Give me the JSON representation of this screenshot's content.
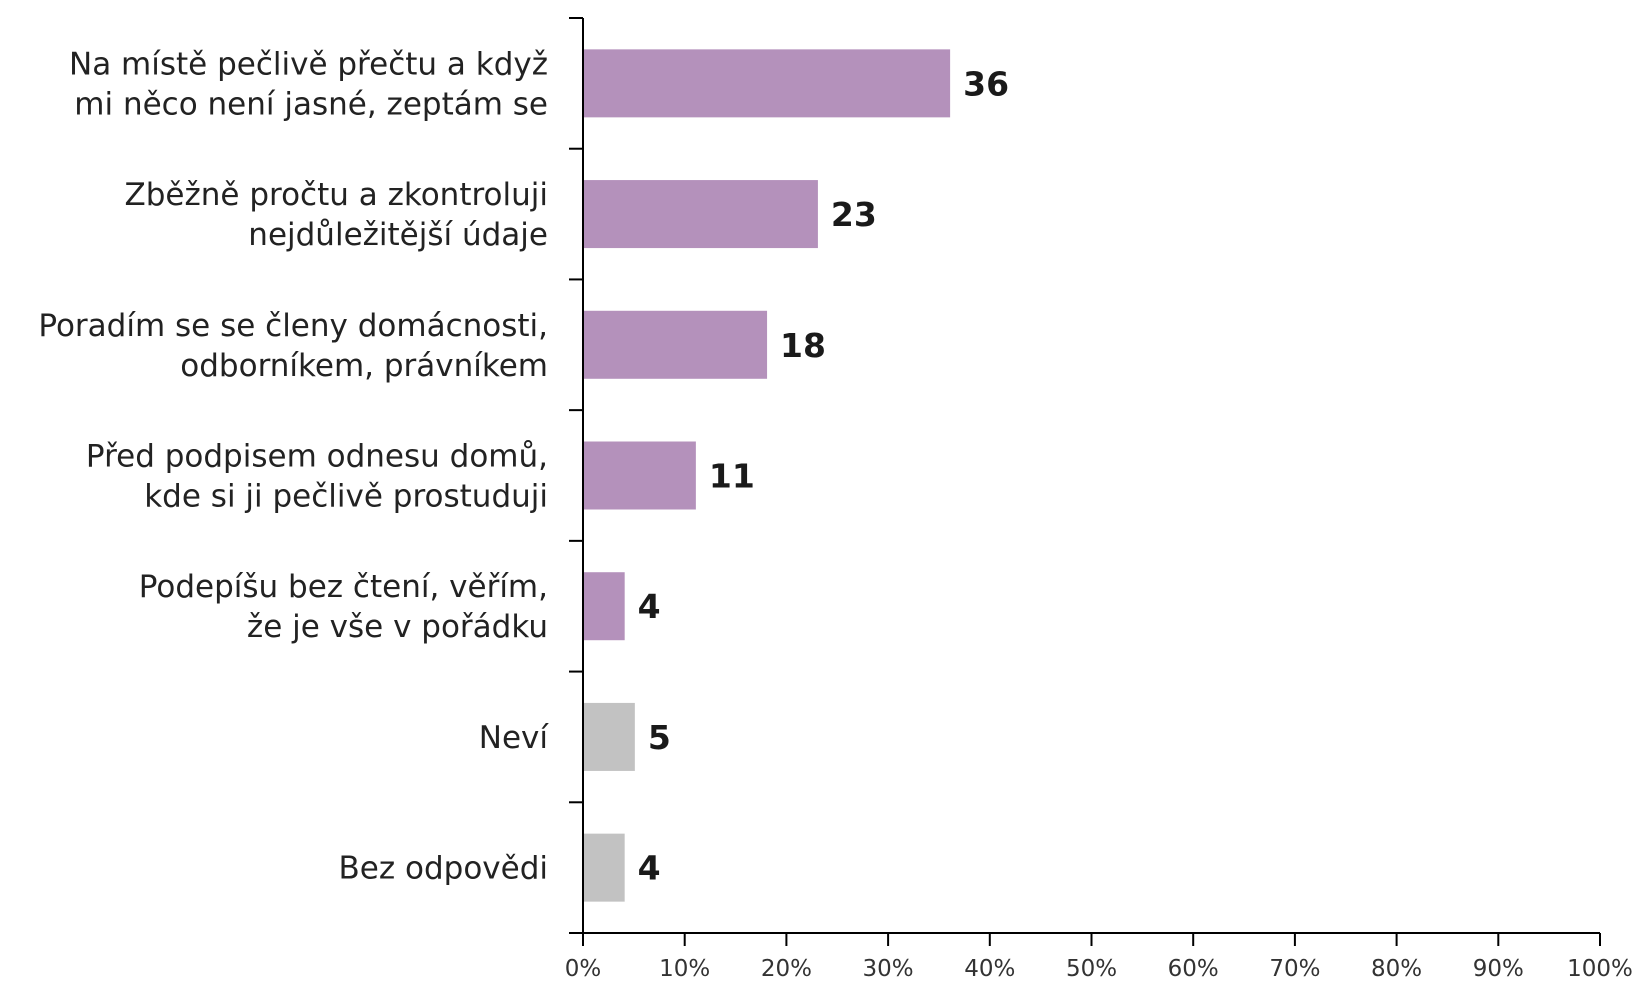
{
  "chart_data": {
    "type": "bar",
    "orientation": "horizontal",
    "title": "",
    "xlabel": "",
    "ylabel": "",
    "xlim": [
      0,
      100
    ],
    "x_ticks": [
      "0%",
      "10%",
      "20%",
      "30%",
      "40%",
      "50%",
      "60%",
      "70%",
      "80%",
      "90%",
      "100%"
    ],
    "grid": false,
    "legend": "none",
    "categories": [
      [
        "Na místě pečlivě přečtu a když",
        "mi něco není jasné, zeptám se"
      ],
      [
        "Zběžně pročtu a zkontroluji",
        "nejdůležitější údaje"
      ],
      [
        "Poradím se se členy domácnosti,",
        "odborníkem, právníkem"
      ],
      [
        "Před podpisem odnesu domů,",
        "kde si ji pečlivě prostuduji"
      ],
      [
        "Podepíšu bez čtení, věřím,",
        "že je vše v pořádku"
      ],
      [
        "Neví"
      ],
      [
        "Bez odpovědi"
      ]
    ],
    "values": [
      36,
      23,
      18,
      11,
      4,
      5,
      4
    ],
    "data_labels": [
      "36",
      "23",
      "18",
      "11",
      "4",
      "5",
      "4"
    ],
    "bar_colors": [
      "#b491bb",
      "#b491bb",
      "#b491bb",
      "#b491bb",
      "#b491bb",
      "#c2c2c2",
      "#c2c2c2"
    ]
  }
}
